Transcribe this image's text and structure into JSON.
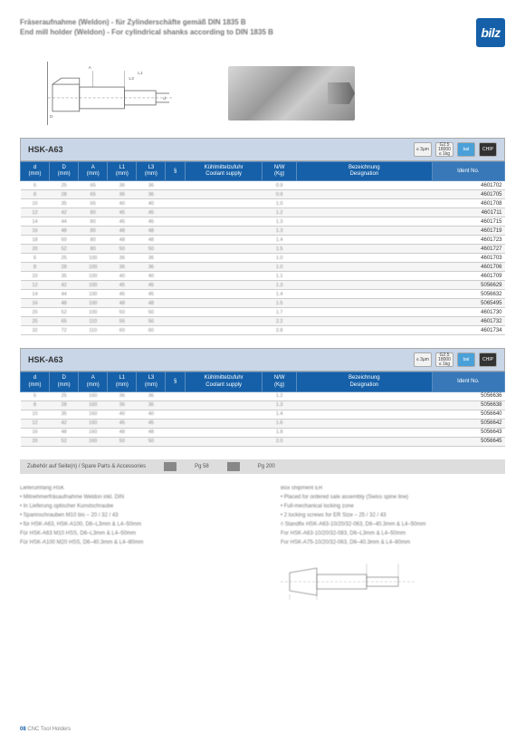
{
  "header": {
    "title_de": "Fräseraufnahme (Weldon) - für Zylinderschäfte gemäß DIN 1835 B",
    "title_en": "End mill holder (Weldon) - For cylindrical shanks according to DIN 1835 B",
    "logo_text": "bilz"
  },
  "caption_icons": [
    {
      "label": "≤ 3µm",
      "cls": ""
    },
    {
      "label": "G2.5\n18000\n≤ 1kg",
      "cls": ""
    },
    {
      "label": "bal",
      "cls": "blue"
    },
    {
      "label": "CHIP",
      "cls": "dark"
    }
  ],
  "table1": {
    "caption": "HSK-A63",
    "columns": [
      "d\n(mm)",
      "D\n(mm)",
      "A\n(mm)",
      "L1\n(mm)",
      "L3\n(mm)",
      "§",
      "Kühlmittelzufuhr\nCoolant supply",
      "N/W\n(Kg)",
      "Bezeichnung\nDesignation",
      "Ident No."
    ],
    "col_widths": [
      "6%",
      "6%",
      "6%",
      "6%",
      "6%",
      "4%",
      "16%",
      "7%",
      "28%",
      "15%"
    ],
    "rows": [
      [
        "6",
        "25",
        "65",
        "36",
        "36",
        "",
        "",
        "0.9",
        "",
        "4601702"
      ],
      [
        "8",
        "28",
        "65",
        "36",
        "36",
        "",
        "",
        "0.9",
        "",
        "4601705"
      ],
      [
        "10",
        "35",
        "65",
        "40",
        "40",
        "",
        "",
        "1.0",
        "",
        "4601708"
      ],
      [
        "12",
        "42",
        "80",
        "45",
        "45",
        "",
        "",
        "1.2",
        "",
        "4601711"
      ],
      [
        "14",
        "44",
        "80",
        "45",
        "45",
        "",
        "",
        "1.3",
        "",
        "4601715"
      ],
      [
        "16",
        "48",
        "80",
        "48",
        "48",
        "",
        "",
        "1.3",
        "",
        "4601719"
      ],
      [
        "18",
        "50",
        "80",
        "48",
        "48",
        "",
        "",
        "1.4",
        "",
        "4601723"
      ],
      [
        "20",
        "52",
        "80",
        "50",
        "50",
        "",
        "",
        "1.5",
        "",
        "4601727"
      ],
      [
        "6",
        "25",
        "100",
        "36",
        "36",
        "",
        "",
        "1.0",
        "",
        "4601703"
      ],
      [
        "8",
        "28",
        "100",
        "36",
        "36",
        "",
        "",
        "1.0",
        "",
        "4601706"
      ],
      [
        "10",
        "35",
        "100",
        "40",
        "40",
        "",
        "",
        "1.1",
        "",
        "4601709"
      ],
      [
        "12",
        "42",
        "100",
        "45",
        "45",
        "",
        "",
        "1.3",
        "",
        "5056629"
      ],
      [
        "14",
        "44",
        "100",
        "45",
        "45",
        "",
        "",
        "1.4",
        "",
        "5056632"
      ],
      [
        "16",
        "48",
        "100",
        "48",
        "48",
        "",
        "",
        "1.5",
        "",
        "5065495"
      ],
      [
        "20",
        "52",
        "100",
        "50",
        "50",
        "",
        "",
        "1.7",
        "",
        "4601730"
      ],
      [
        "25",
        "65",
        "110",
        "56",
        "56",
        "",
        "",
        "2.2",
        "",
        "4601732"
      ],
      [
        "32",
        "72",
        "110",
        "60",
        "60",
        "",
        "",
        "2.8",
        "",
        "4601734"
      ]
    ]
  },
  "table2": {
    "caption": "HSK-A63",
    "columns": [
      "d\n(mm)",
      "D\n(mm)",
      "A\n(mm)",
      "L1\n(mm)",
      "L3\n(mm)",
      "§",
      "Kühlmittelzufuhr\nCoolant supply",
      "N/W\n(Kg)",
      "Bezeichnung\nDesignation",
      "Ident No."
    ],
    "col_widths": [
      "6%",
      "6%",
      "6%",
      "6%",
      "6%",
      "4%",
      "16%",
      "7%",
      "28%",
      "15%"
    ],
    "rows": [
      [
        "6",
        "25",
        "160",
        "36",
        "36",
        "",
        "",
        "1.2",
        "",
        "5056636"
      ],
      [
        "8",
        "28",
        "160",
        "36",
        "36",
        "",
        "",
        "1.3",
        "",
        "5056638"
      ],
      [
        "10",
        "35",
        "160",
        "40",
        "40",
        "",
        "",
        "1.4",
        "",
        "5056640"
      ],
      [
        "12",
        "42",
        "160",
        "45",
        "45",
        "",
        "",
        "1.6",
        "",
        "5056642"
      ],
      [
        "16",
        "48",
        "160",
        "48",
        "48",
        "",
        "",
        "1.8",
        "",
        "5056643"
      ],
      [
        "20",
        "52",
        "160",
        "50",
        "50",
        "",
        "",
        "2.0",
        "",
        "5056645"
      ]
    ]
  },
  "accessories": {
    "label": "Zubehör auf Seite(n) / Spare Parts & Accessories",
    "items": [
      "Pg 58",
      "Pg 200"
    ]
  },
  "info_left": [
    "Lieferumfang HSK",
    "• Mitnehmerfräsaufnahme Weldon inkl. DIN",
    "• In Lieferung optischer Kunstschraube",
    "• Spannschrauben M10 bis – 20 / 32 / 43",
    "• für HSK-A63, HSK-A100, D6–L3mm & L4–50mm",
    "   Für HSK-A63 M10 HSS, D6–L3mm & L4–50mm",
    "   Für HSK-A100 M20 HSS, D6–40.3mm & L4–80mm"
  ],
  "info_right": [
    "Box shipment ER",
    "• Placed for ordered sale assembly (Swiss spine line)",
    "• Full-mechanical locking zone",
    "• 2 locking screws for ER Size – 25 / 32 / 43",
    "◊ Standfix HSK-A63-10/20/32-063, D6–40.3mm & L4–50mm",
    "   For HSK-A63-10/20/32-083, D6–L3mm & L4–50mm",
    "   For HSK-A75-10/20/32-063, D6–40.3mm & L4–80mm"
  ],
  "footer": {
    "page": "08",
    "text": "CNC Tool Holders"
  },
  "colors": {
    "header_blue": "#1560a8",
    "caption_bg": "#c8d6e8",
    "row_alt": "#f5f5f5",
    "border": "#cccccc"
  }
}
